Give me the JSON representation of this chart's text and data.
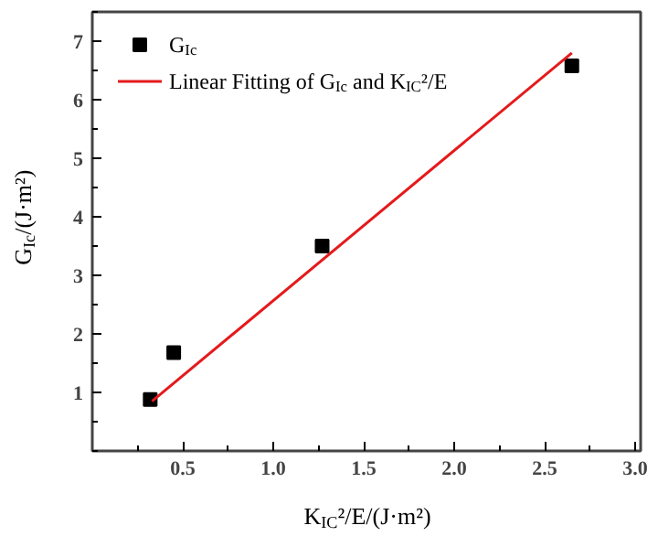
{
  "chart_data": {
    "type": "scatter",
    "xlabel": "K$_{IC}$²/E/(J·m²)",
    "ylabel": "G$_{Ic}$/(J·m²)",
    "xlim": [
      0,
      3.03
    ],
    "ylim": [
      0,
      7.5
    ],
    "xticks": [
      0.5,
      {
        "value": 1,
        "label": "1.0"
      },
      1.5,
      {
        "value": 2,
        "label": "2.0"
      },
      2.5,
      {
        "value": 3,
        "label": "3.0"
      }
    ],
    "yticks": [
      1,
      2,
      3,
      4,
      5,
      6,
      7
    ],
    "series": [
      {
        "name": "G$_{Ic}$",
        "type": "scatter",
        "marker": "square",
        "color": "#000000",
        "x": [
          0.32,
          0.45,
          1.27,
          2.65
        ],
        "values": [
          0.88,
          1.68,
          3.5,
          6.58
        ]
      },
      {
        "name": "Linear Fitting of G$_{Ic}$ and K$_{IC}$²/E",
        "type": "line",
        "marker": "none",
        "color": "#e41a1c",
        "x": [
          0.33,
          2.65
        ],
        "values": [
          0.85,
          6.8
        ]
      }
    ],
    "legend": "top left",
    "grid": false
  }
}
